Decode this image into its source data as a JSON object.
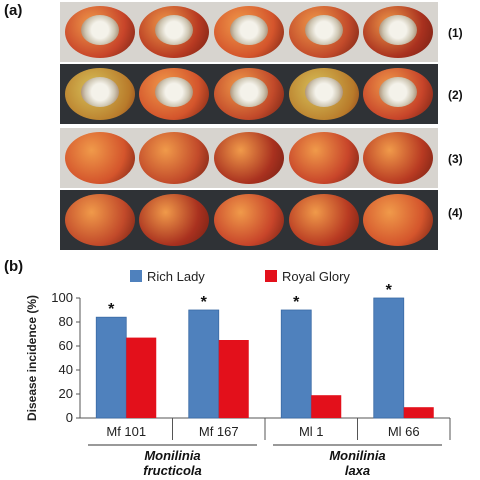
{
  "panel_a": {
    "label": "(a)",
    "rows": [
      {
        "label": "(1)",
        "background": "#d7d4cf",
        "fruit_count": 5,
        "lesion": "large-white"
      },
      {
        "label": "(2)",
        "background": "#2f3236",
        "fruit_count": 5,
        "lesion": "large-white"
      },
      {
        "label": "(3)",
        "background": "#d7d4cf",
        "fruit_count": 5,
        "lesion": "none"
      },
      {
        "label": "(4)",
        "background": "#2f3236",
        "fruit_count": 5,
        "lesion": "none"
      }
    ]
  },
  "panel_b": {
    "label": "(b)"
  },
  "chart_data": {
    "type": "bar",
    "ylabel": "Disease incidence (%)",
    "ylim": [
      0,
      100
    ],
    "yticks": [
      0,
      20,
      40,
      60,
      80,
      100
    ],
    "categories": [
      "Mf 101",
      "Mf 167",
      "Ml 1",
      "Ml 66"
    ],
    "groups": [
      {
        "line1": "Monilinia",
        "line2": "fructicola",
        "categories": [
          "Mf 101",
          "Mf 167"
        ]
      },
      {
        "line1": "Monilinia",
        "line2": "laxa",
        "categories": [
          "Ml 1",
          "Ml 66"
        ]
      }
    ],
    "series": [
      {
        "name": "Rich Lady",
        "color": "#4f81bd",
        "values": [
          84,
          90,
          90,
          100
        ]
      },
      {
        "name": "Royal Glory",
        "color": "#e3101b",
        "values": [
          67,
          65,
          19,
          9
        ]
      }
    ],
    "significance_marker": "*",
    "significance_on": "Rich Lady",
    "legend_position": "top"
  }
}
